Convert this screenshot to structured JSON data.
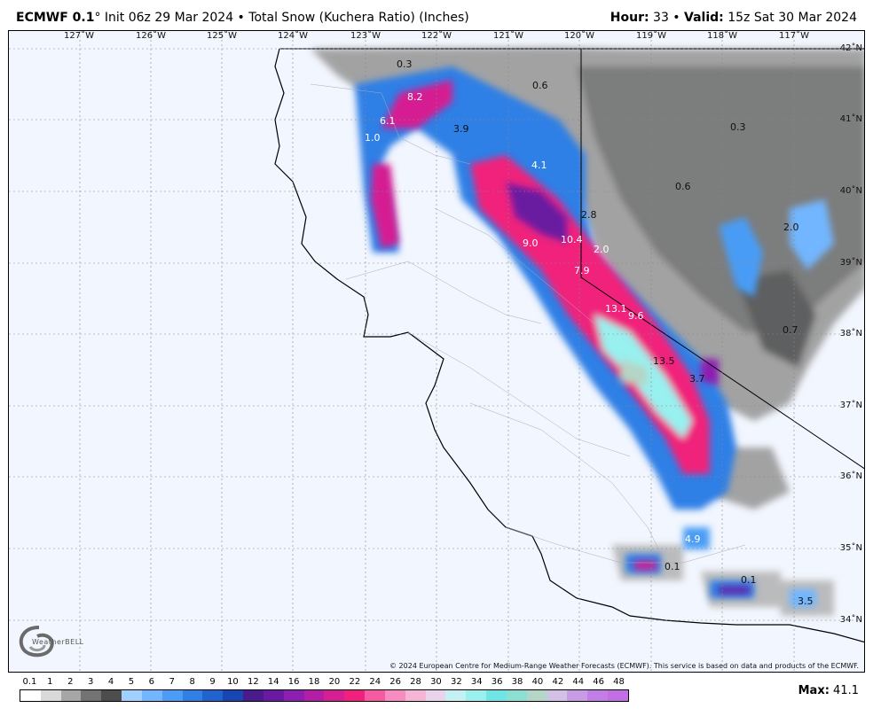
{
  "header": {
    "model": "ECMWF 0.1",
    "degree": "°",
    "init": " Init 06z 29 Mar 2024",
    "sep": " • ",
    "product": "Total Snow (Kuchera Ratio) (Inches)",
    "hour_label": "Hour:",
    "hour_value": " 33",
    "valid_label": "Valid:",
    "valid_value": " 15z Sat 30 Mar 2024"
  },
  "map": {
    "lon_labels": [
      "127˚W",
      "126˚W",
      "125˚W",
      "124˚W",
      "123˚W",
      "122˚W",
      "121˚W",
      "120˚W",
      "119˚W",
      "118˚W",
      "117˚W"
    ],
    "lat_labels": [
      "42˚N",
      "41˚N",
      "40˚N",
      "39˚N",
      "38˚N",
      "37˚N",
      "36˚N",
      "35˚N",
      "34˚N"
    ],
    "amounts": [
      "0.3",
      "8.2",
      "0.6",
      "6.1",
      "1.0",
      "3.9",
      "4.1",
      "0.3",
      "0.6",
      "2.8",
      "9.0",
      "10.4",
      "2.0",
      "2.0",
      "7.9",
      "13.1",
      "9.6",
      "0.7",
      "13.5",
      "3.7",
      "4.9",
      "0.1",
      "0.1",
      "3.5"
    ],
    "copyright": "© 2024 European Centre for Medium-Range Weather Forecasts (ECMWF). This service is based on data and products of the ECMWF.",
    "logo": "WeatherBELL"
  },
  "legend": {
    "labels": [
      "0.1",
      "1",
      "2",
      "3",
      "4",
      "5",
      "6",
      "7",
      "8",
      "9",
      "10",
      "12",
      "14",
      "16",
      "18",
      "20",
      "22",
      "24",
      "26",
      "28",
      "30",
      "32",
      "34",
      "36",
      "38",
      "40",
      "42",
      "44",
      "46",
      "48"
    ],
    "colors": [
      "#ffffff",
      "#d9d9d9",
      "#a6a6a6",
      "#737373",
      "#4d4d4d",
      "#9fd0ff",
      "#72b6ff",
      "#4a9cf5",
      "#2f7fe6",
      "#1f63cf",
      "#1846b0",
      "#4b1a8f",
      "#6a1aa0",
      "#8c1fb0",
      "#b21fa6",
      "#d61f92",
      "#f0207c",
      "#f65aa3",
      "#f88cc0",
      "#f7b5d6",
      "#e9d4ec",
      "#c6f1f4",
      "#98f0ef",
      "#6fe6e5",
      "#8ae0d2",
      "#b4d6c6",
      "#d3c0e6",
      "#c79be6",
      "#c27de6",
      "#c46ee6"
    ],
    "max_label": "Max:",
    "max_value": " 41.1"
  }
}
